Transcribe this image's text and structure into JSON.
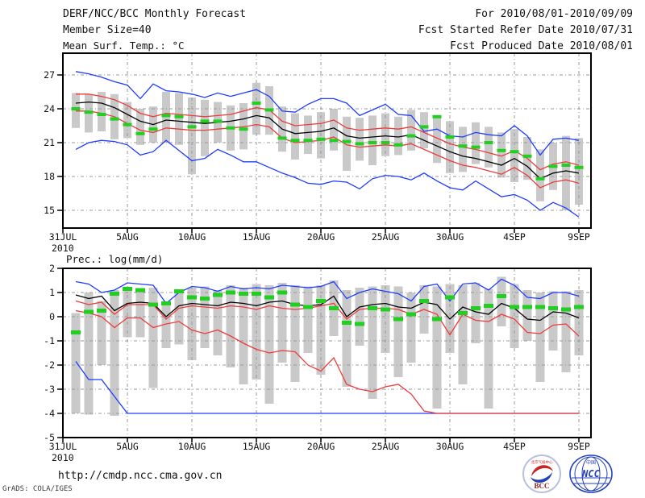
{
  "header": {
    "title": "DERF/NCC/BCC Monthly Forecast",
    "member_size": "Member Size=40",
    "for_range": "For 2010/08/01-2010/09/09",
    "refer_date": "Fcst Started Refer Date 2010/07/31",
    "produced_date": "Fcst Produced Date 2010/08/01"
  },
  "footer": {
    "url": "http://cmdp.ncc.cma.gov.cn",
    "credit": "GrADS: COLA/IGES"
  },
  "logos": {
    "bcc_label": "BCC",
    "bcc_ring_text": "北京气候中心",
    "ncc_label": "NCC",
    "ncc_ring_text": "中国"
  },
  "colors": {
    "blue": "#1e3cff",
    "red": "#ef3b3b",
    "black": "#000000",
    "green": "#21cf21",
    "gray": "#c9c9c9",
    "grid": "#999999",
    "frame": "#000000",
    "logo_blue": "#2340bb",
    "logo_red": "#cc2222",
    "bcc_text": "#8b1a1a"
  },
  "xaxis": {
    "year": "2010",
    "tick_labels": [
      "31JUL",
      "5AUG",
      "10AUG",
      "15AUG",
      "20AUG",
      "25AUG",
      "30AUG",
      "4SEP",
      "9SEP"
    ],
    "tick_day_offsets": [
      0,
      5,
      10,
      15,
      20,
      25,
      30,
      35,
      40
    ],
    "grid_day_offsets": [
      5,
      10,
      15,
      20,
      25,
      30,
      35,
      40
    ]
  },
  "chart_data": [
    {
      "type": "line",
      "title": "Mean Surf. Temp.: °C",
      "ylim": [
        13.4,
        28.9
      ],
      "xlim_days": [
        0,
        41
      ],
      "label_yticks": [
        27,
        24,
        21,
        18,
        15
      ],
      "grid_yticks": [
        27,
        24,
        21,
        18,
        15
      ],
      "dates": [
        "1AUG",
        "2AUG",
        "3AUG",
        "4AUG",
        "5AUG",
        "6AUG",
        "7AUG",
        "8AUG",
        "9AUG",
        "10AUG",
        "11AUG",
        "12AUG",
        "13AUG",
        "14AUG",
        "15AUG",
        "16AUG",
        "17AUG",
        "18AUG",
        "19AUG",
        "20AUG",
        "21AUG",
        "22AUG",
        "23AUG",
        "24AUG",
        "25AUG",
        "26AUG",
        "27AUG",
        "28AUG",
        "29AUG",
        "30AUG",
        "31AUG",
        "1SEP",
        "2SEP",
        "3SEP",
        "4SEP",
        "5SEP",
        "6SEP",
        "7SEP",
        "8SEP",
        "9SEP"
      ],
      "series": [
        {
          "name": "ensemble-min",
          "color_key": "blue",
          "values": [
            20.4,
            21.0,
            21.2,
            21.1,
            20.8,
            19.9,
            20.2,
            21.2,
            20.3,
            19.4,
            19.6,
            20.4,
            19.9,
            19.3,
            19.3,
            18.8,
            18.3,
            17.9,
            17.4,
            17.3,
            17.6,
            17.5,
            16.9,
            17.8,
            18.1,
            18.0,
            17.7,
            18.3,
            17.6,
            17.0,
            16.8,
            17.6,
            16.9,
            16.2,
            16.4,
            15.9,
            15.0,
            15.7,
            15.2,
            14.4
          ]
        },
        {
          "name": "ensemble-max",
          "color_key": "blue",
          "values": [
            27.3,
            27.1,
            26.8,
            26.4,
            26.1,
            24.9,
            26.2,
            25.6,
            25.5,
            25.3,
            25.0,
            25.4,
            25.1,
            25.4,
            25.7,
            25.1,
            23.8,
            23.7,
            24.4,
            24.9,
            24.9,
            24.5,
            23.4,
            23.9,
            24.4,
            23.5,
            23.4,
            22.0,
            22.2,
            21.6,
            21.5,
            21.9,
            21.7,
            21.6,
            22.5,
            21.6,
            19.9,
            21.3,
            21.4,
            21.2
          ]
        },
        {
          "name": "mean-minus-std",
          "color_key": "red",
          "values": [
            23.8,
            23.8,
            23.6,
            23.3,
            22.7,
            22.1,
            21.9,
            22.3,
            22.2,
            22.1,
            22.1,
            22.2,
            22.3,
            22.4,
            22.6,
            22.4,
            21.4,
            21.0,
            21.1,
            21.2,
            21.5,
            20.8,
            20.6,
            20.7,
            20.8,
            20.7,
            20.9,
            20.4,
            19.9,
            19.4,
            19.0,
            18.8,
            18.5,
            18.2,
            18.8,
            18.1,
            17.0,
            17.5,
            17.7,
            17.4
          ]
        },
        {
          "name": "mean-plus-std",
          "color_key": "red",
          "values": [
            25.3,
            25.3,
            25.1,
            24.8,
            24.3,
            23.6,
            23.3,
            23.6,
            23.5,
            23.4,
            23.3,
            23.4,
            23.5,
            23.8,
            24.1,
            23.9,
            22.9,
            22.5,
            22.6,
            22.7,
            23.0,
            22.3,
            22.1,
            22.2,
            22.3,
            22.2,
            22.4,
            21.9,
            21.4,
            20.9,
            20.6,
            20.4,
            20.1,
            19.8,
            20.3,
            19.6,
            18.6,
            19.1,
            19.3,
            19.0
          ]
        },
        {
          "name": "ensemble-mean",
          "color_key": "black",
          "values": [
            24.5,
            24.6,
            24.5,
            24.1,
            23.5,
            22.9,
            22.6,
            23.0,
            22.9,
            22.8,
            22.7,
            22.8,
            22.9,
            23.1,
            23.4,
            23.2,
            22.2,
            21.8,
            21.9,
            22.0,
            22.3,
            21.6,
            21.4,
            21.5,
            21.6,
            21.5,
            21.7,
            21.2,
            20.7,
            20.2,
            19.8,
            19.6,
            19.3,
            19.0,
            19.6,
            18.9,
            17.8,
            18.3,
            18.5,
            18.3
          ]
        }
      ],
      "obs": {
        "name": "observation",
        "color_key": "green",
        "values": [
          24.0,
          23.7,
          23.5,
          23.1,
          22.6,
          21.8,
          22.2,
          23.4,
          23.3,
          22.4,
          22.9,
          22.9,
          22.3,
          22.2,
          24.5,
          23.9,
          21.4,
          21.2,
          21.2,
          21.3,
          21.2,
          21.1,
          20.9,
          21.0,
          21.0,
          20.8,
          21.6,
          22.4,
          23.3,
          21.5,
          20.7,
          20.6,
          21.0,
          20.3,
          20.2,
          19.8,
          17.8,
          18.9,
          19.0,
          18.8
        ]
      },
      "spread_bars": {
        "color_key": "gray",
        "low": [
          22.3,
          21.9,
          22.0,
          21.3,
          21.4,
          20.8,
          21.0,
          21.0,
          20.8,
          18.2,
          19.8,
          21.0,
          20.3,
          20.4,
          21.7,
          21.7,
          20.2,
          19.5,
          20.0,
          19.6,
          20.3,
          18.5,
          19.4,
          19.0,
          19.8,
          19.9,
          20.3,
          20.5,
          19.2,
          18.3,
          18.4,
          19.1,
          18.8,
          17.9,
          17.5,
          17.7,
          15.8,
          16.8,
          15.0,
          15.5
        ],
        "high": [
          25.4,
          25.3,
          25.5,
          25.3,
          24.6,
          24.0,
          24.2,
          25.5,
          25.4,
          25.0,
          24.8,
          24.6,
          24.3,
          24.5,
          26.3,
          26.0,
          24.2,
          23.6,
          23.4,
          23.7,
          24.0,
          23.3,
          23.2,
          23.4,
          23.6,
          23.3,
          23.9,
          23.7,
          23.2,
          22.9,
          22.4,
          22.8,
          22.4,
          21.9,
          22.2,
          21.5,
          20.4,
          21.0,
          21.6,
          21.4
        ]
      }
    },
    {
      "type": "line",
      "title": "Prec.: log(mm/d)",
      "ylim": [
        -5,
        2
      ],
      "xlim_days": [
        0,
        41
      ],
      "label_yticks": [
        2,
        1,
        0,
        -1,
        -2,
        -3,
        -4,
        -5
      ],
      "grid_yticks": [
        1,
        0,
        -1,
        -2,
        -3,
        -4
      ],
      "dates": [
        "1AUG",
        "2AUG",
        "3AUG",
        "4AUG",
        "5AUG",
        "6AUG",
        "7AUG",
        "8AUG",
        "9AUG",
        "10AUG",
        "11AUG",
        "12AUG",
        "13AUG",
        "14AUG",
        "15AUG",
        "16AUG",
        "17AUG",
        "18AUG",
        "19AUG",
        "20AUG",
        "21AUG",
        "22AUG",
        "23AUG",
        "24AUG",
        "25AUG",
        "26AUG",
        "27AUG",
        "28AUG",
        "29AUG",
        "30AUG",
        "31AUG",
        "1SEP",
        "2SEP",
        "3SEP",
        "4SEP",
        "5SEP",
        "6SEP",
        "7SEP",
        "8SEP",
        "9SEP"
      ],
      "series": [
        {
          "name": "ensemble-min",
          "color_key": "blue",
          "values": [
            -1.85,
            -2.6,
            -2.6,
            -3.3,
            -4.0,
            -4.0,
            -4.0,
            -4.0,
            -4.0,
            -4.0,
            -4.0,
            -4.0,
            -4.0,
            -4.0,
            -4.0,
            -4.0,
            -4.0,
            -4.0,
            -4.0,
            -4.0,
            -4.0,
            -4.0,
            -4.0,
            -4.0,
            -4.0,
            -4.0,
            -4.0,
            -4.0,
            -4.0,
            -4.0,
            -4.0,
            -4.0,
            -4.0,
            -4.0,
            -4.0,
            -4.0,
            -4.0,
            -4.0,
            -4.0,
            -4.0
          ]
        },
        {
          "name": "ensemble-max",
          "color_key": "blue",
          "values": [
            1.45,
            1.35,
            1.0,
            1.1,
            1.4,
            1.35,
            1.3,
            0.55,
            1.0,
            1.25,
            1.2,
            1.05,
            1.25,
            1.15,
            1.2,
            1.15,
            1.3,
            1.25,
            1.2,
            1.25,
            1.45,
            0.75,
            1.0,
            1.15,
            1.05,
            0.95,
            0.65,
            1.25,
            1.35,
            0.65,
            1.35,
            1.4,
            1.1,
            1.55,
            1.3,
            0.8,
            0.75,
            1.0,
            1.0,
            0.85
          ]
        },
        {
          "name": "mean-minus-std",
          "color_key": "red",
          "values": [
            0.25,
            0.15,
            0.0,
            -0.45,
            -0.05,
            -0.05,
            -0.45,
            -0.3,
            -0.2,
            -0.55,
            -0.7,
            -0.55,
            -0.8,
            -1.1,
            -1.35,
            -1.5,
            -1.4,
            -1.45,
            -2.0,
            -2.25,
            -1.7,
            -2.8,
            -3.0,
            -3.1,
            -2.9,
            -2.8,
            -3.2,
            -3.9,
            -4.0,
            -4.0,
            -4.0,
            -4.0,
            -4.0,
            -4.0,
            -4.0,
            -4.0,
            -4.0,
            -4.0,
            -4.0,
            -4.0
          ]
        },
        {
          "name": "mean-plus-std",
          "color_key": "red",
          "values": [
            0.65,
            0.5,
            0.6,
            0.1,
            0.5,
            0.5,
            0.5,
            -0.1,
            0.35,
            0.45,
            0.4,
            0.35,
            0.45,
            0.4,
            0.3,
            0.45,
            0.35,
            0.3,
            0.35,
            0.45,
            0.55,
            -0.1,
            0.3,
            0.35,
            0.35,
            0.3,
            0.1,
            0.3,
            0.1,
            -0.75,
            0.1,
            -0.15,
            -0.2,
            0.1,
            -0.1,
            -0.65,
            -0.7,
            -0.35,
            -0.3,
            -0.8
          ]
        },
        {
          "name": "ensemble-mean",
          "color_key": "black",
          "values": [
            0.9,
            0.75,
            0.85,
            0.25,
            0.55,
            0.6,
            0.55,
            0.0,
            0.45,
            0.55,
            0.5,
            0.45,
            0.6,
            0.55,
            0.45,
            0.6,
            0.65,
            0.5,
            0.45,
            0.5,
            0.85,
            0.0,
            0.4,
            0.5,
            0.55,
            0.4,
            0.35,
            0.6,
            0.5,
            -0.1,
            0.4,
            0.2,
            0.1,
            0.55,
            0.35,
            -0.1,
            -0.15,
            0.2,
            0.15,
            -0.05
          ]
        }
      ],
      "obs": {
        "name": "observation",
        "color_key": "green",
        "values": [
          -0.65,
          0.2,
          0.25,
          0.95,
          1.15,
          1.1,
          0.5,
          0.55,
          1.05,
          0.8,
          0.75,
          0.9,
          1.0,
          0.95,
          0.95,
          0.8,
          1.0,
          0.5,
          0.4,
          0.65,
          0.35,
          -0.25,
          -0.3,
          0.35,
          0.3,
          -0.1,
          0.1,
          0.65,
          -0.1,
          0.8,
          0.15,
          0.35,
          0.45,
          0.85,
          0.4,
          0.4,
          0.4,
          0.35,
          0.3,
          0.4
        ]
      },
      "spread_bars": {
        "color_key": "gray",
        "low": [
          -4.0,
          -4.05,
          -2.0,
          -4.1,
          -0.85,
          -0.85,
          -2.95,
          -1.3,
          -1.15,
          -1.8,
          -1.3,
          -1.6,
          -2.1,
          -2.8,
          -2.6,
          -3.6,
          -1.9,
          -2.7,
          -1.5,
          -2.4,
          -0.8,
          -2.9,
          -1.2,
          -3.4,
          -1.5,
          -2.5,
          -1.9,
          -0.7,
          -3.8,
          -1.5,
          -2.8,
          -1.1,
          -3.8,
          -0.4,
          -1.3,
          -1.0,
          -2.7,
          -1.4,
          -2.3,
          -1.6
        ],
        "high": [
          0.15,
          1.0,
          0.65,
          1.1,
          1.2,
          1.15,
          1.2,
          0.6,
          1.1,
          1.2,
          1.25,
          1.1,
          1.3,
          1.2,
          1.35,
          1.3,
          1.4,
          1.3,
          1.25,
          1.3,
          1.5,
          1.1,
          1.2,
          1.25,
          1.3,
          1.25,
          1.0,
          1.3,
          1.25,
          1.35,
          1.3,
          1.4,
          1.15,
          1.65,
          1.35,
          1.1,
          1.0,
          1.05,
          1.05,
          1.1
        ]
      }
    }
  ]
}
